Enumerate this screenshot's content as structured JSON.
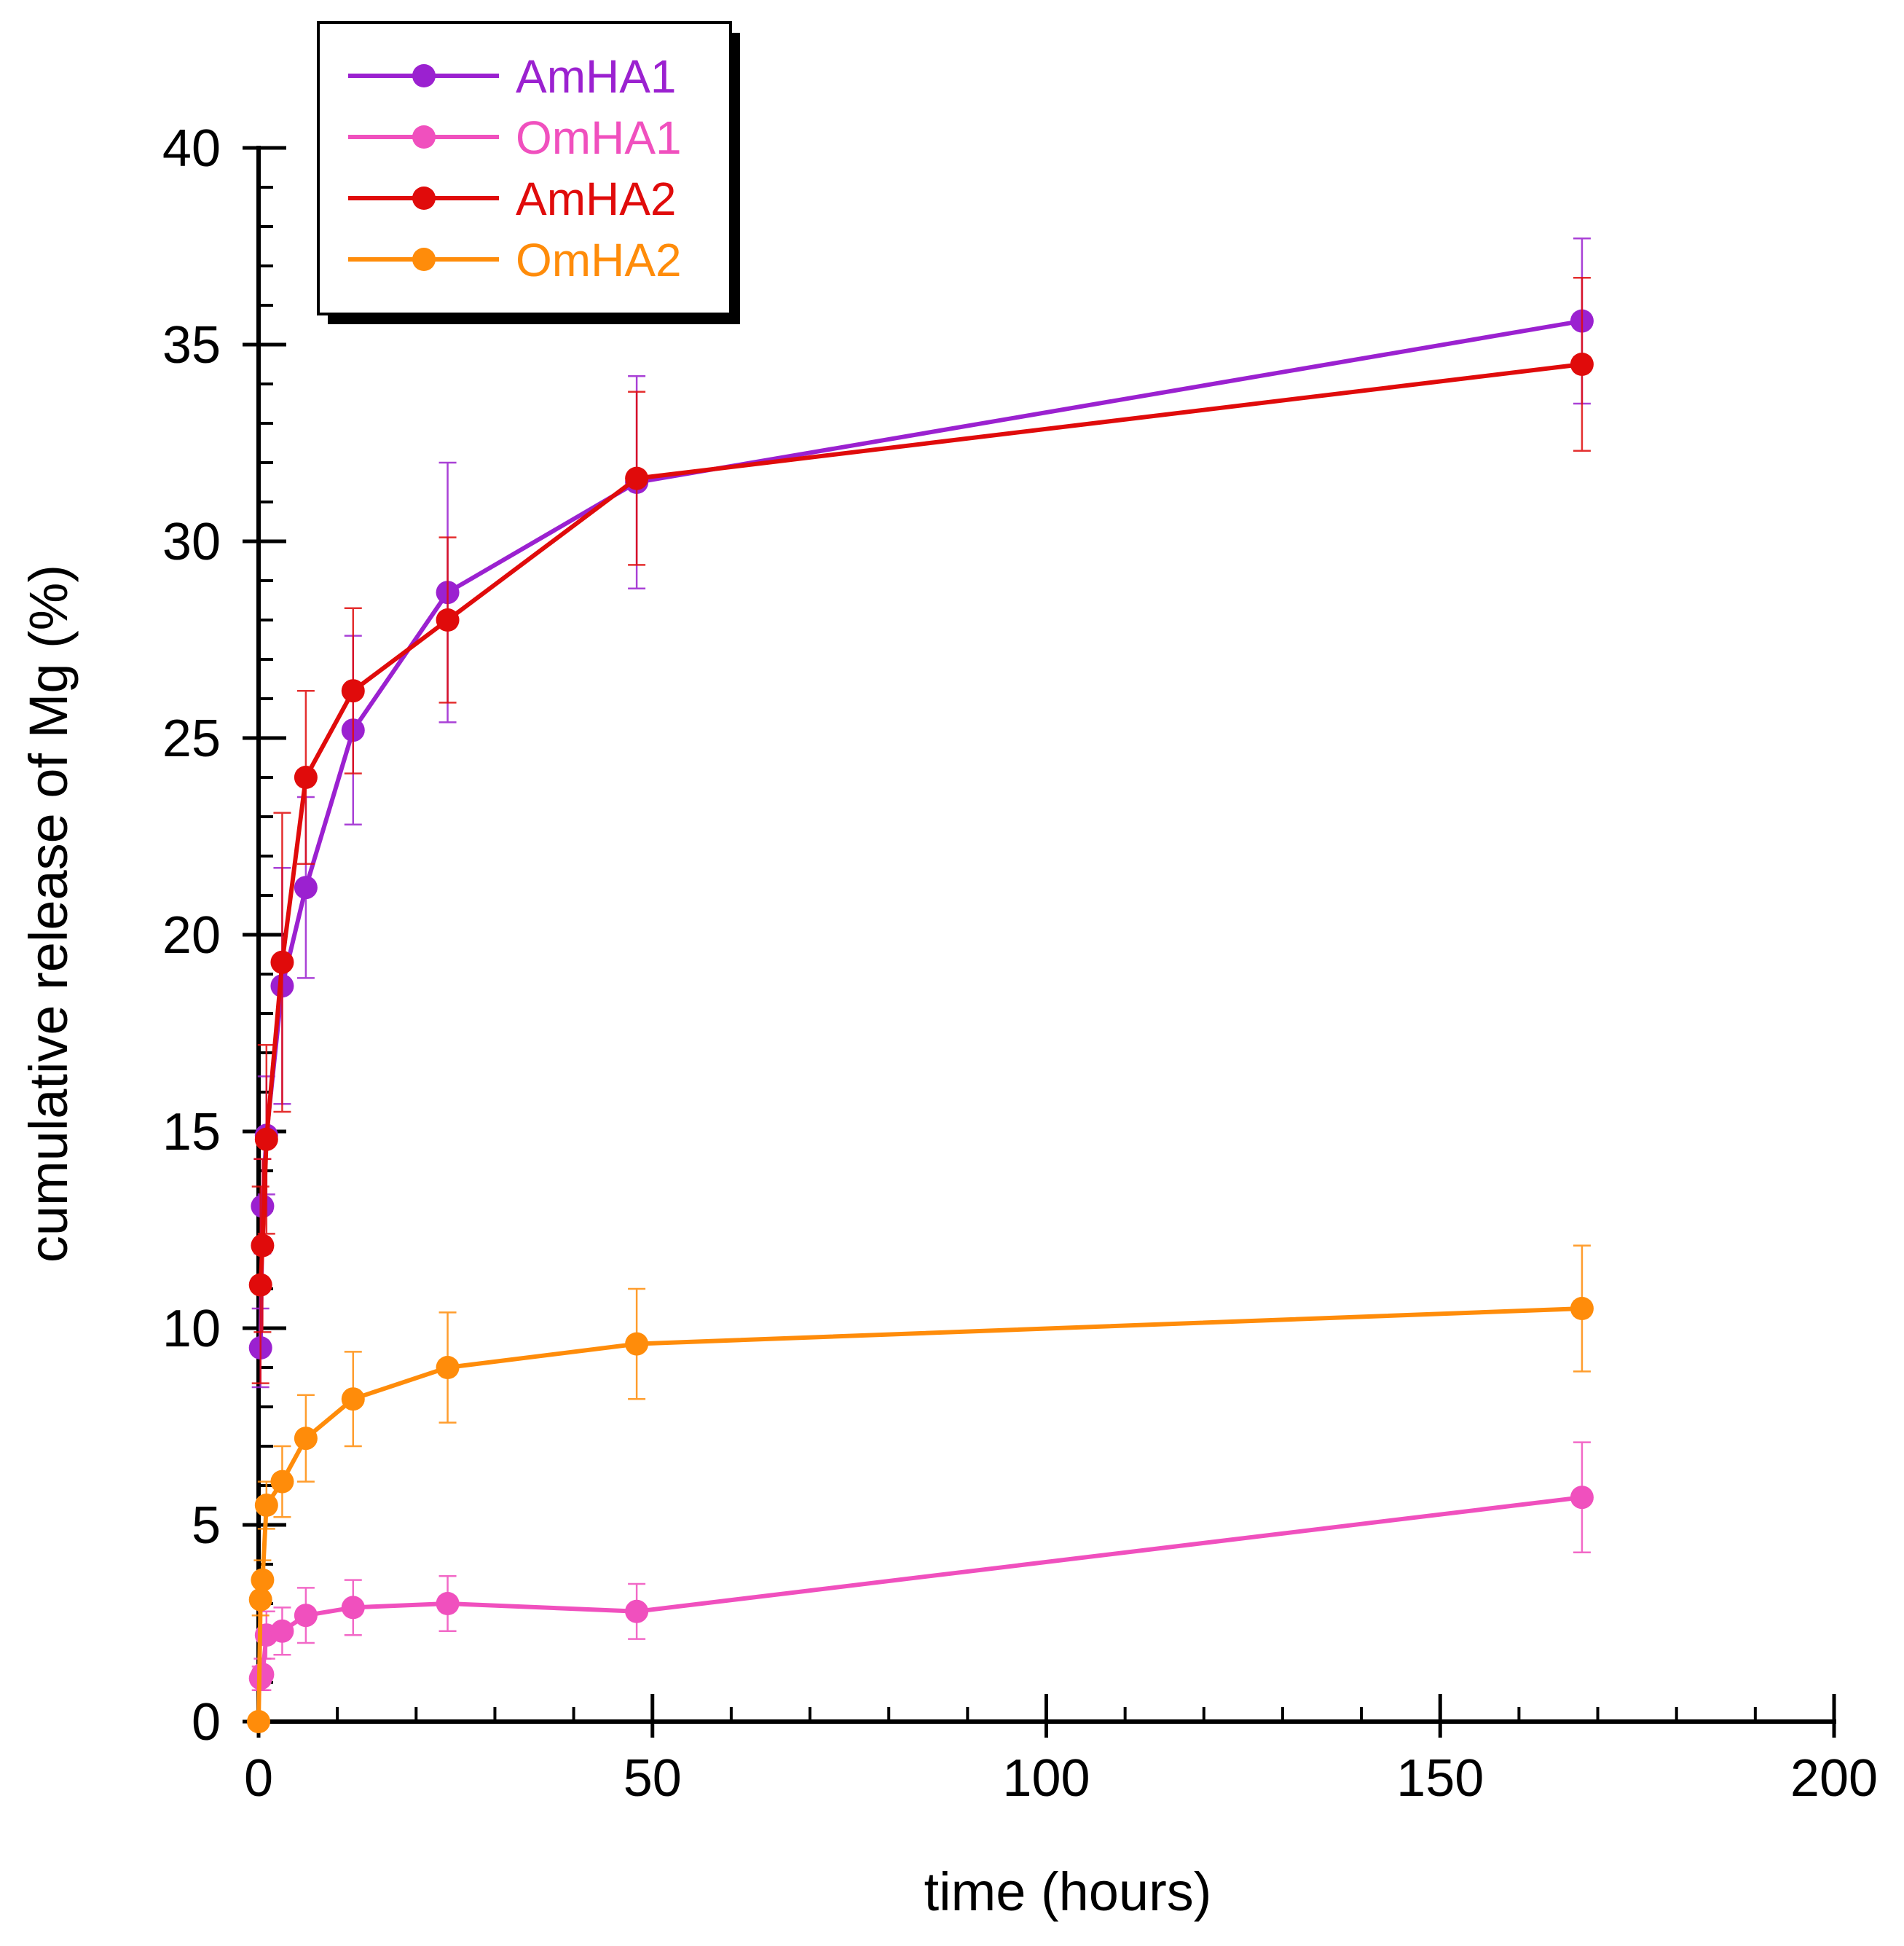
{
  "chart_data": {
    "type": "line",
    "title": "",
    "xlabel": "time (hours)",
    "ylabel": "cumulative release of Mg (%)",
    "xlim": [
      0,
      200
    ],
    "ylim": [
      0,
      40
    ],
    "xticks": [
      0,
      50,
      100,
      150,
      200
    ],
    "yticks": [
      0,
      5,
      10,
      15,
      20,
      25,
      30,
      35,
      40
    ],
    "xtick_labels": [
      "0",
      "50",
      "100",
      "150",
      "200"
    ],
    "ytick_labels": [
      "0",
      "5",
      "10",
      "15",
      "20",
      "25",
      "30",
      "35",
      "40"
    ],
    "x_minor_step": 10,
    "y_minor_step": 1,
    "legend_position": "top-left",
    "series": [
      {
        "name": "AmHA1",
        "color": "#9b21d0",
        "x": [
          0.25,
          0.5,
          1,
          3,
          6,
          12,
          24,
          48,
          168
        ],
        "y": [
          9.5,
          13.1,
          14.9,
          18.7,
          21.2,
          25.2,
          28.7,
          31.5,
          35.6
        ],
        "err": [
          1.0,
          1.2,
          1.5,
          3.0,
          2.3,
          2.4,
          3.3,
          2.7,
          2.1
        ]
      },
      {
        "name": "OmHA1",
        "color": "#f050be",
        "x": [
          0.25,
          0.5,
          1,
          3,
          6,
          12,
          24,
          48,
          168
        ],
        "y": [
          1.1,
          1.2,
          2.2,
          2.3,
          2.7,
          2.9,
          3.0,
          2.8,
          5.7
        ],
        "err": [
          0.3,
          0.4,
          0.6,
          0.6,
          0.7,
          0.7,
          0.7,
          0.7,
          1.4
        ]
      },
      {
        "name": "AmHA2",
        "color": "#e00b0b",
        "x": [
          0.25,
          0.5,
          1,
          3,
          6,
          12,
          24,
          48,
          168
        ],
        "y": [
          11.1,
          12.1,
          14.8,
          19.3,
          24.0,
          26.2,
          28.0,
          31.6,
          34.5
        ],
        "err": [
          2.5,
          2.2,
          2.4,
          3.8,
          2.2,
          2.1,
          2.1,
          2.2,
          2.2
        ]
      },
      {
        "name": "OmHA2",
        "color": "#ff8c0a",
        "x": [
          0,
          0.25,
          0.5,
          1,
          3,
          6,
          12,
          24,
          48,
          168
        ],
        "y": [
          0.0,
          3.1,
          3.6,
          5.5,
          6.1,
          7.2,
          8.2,
          9.0,
          9.6,
          10.5
        ],
        "err": [
          0.0,
          0.4,
          0.5,
          0.6,
          0.9,
          1.1,
          1.2,
          1.4,
          1.4,
          1.6
        ]
      }
    ]
  }
}
